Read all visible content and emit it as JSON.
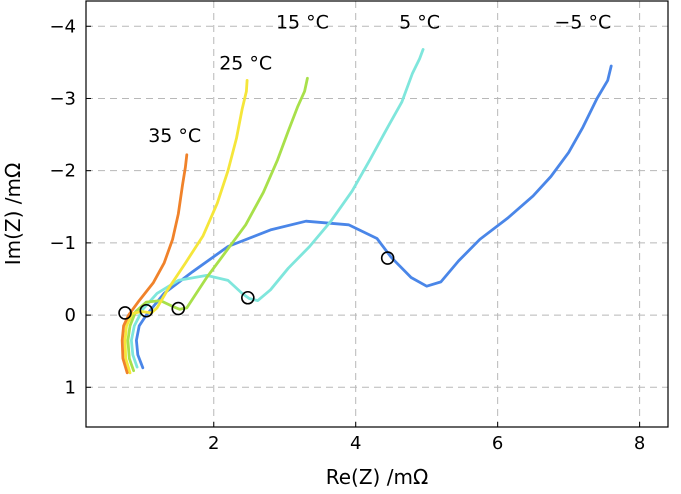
{
  "chart_data": {
    "type": "line",
    "xlabel": "Re(Z) /mΩ",
    "ylabel": "Im(Z) /mΩ",
    "xlim": [
      0.2,
      8.4
    ],
    "ylim": [
      1.55,
      -4.35
    ],
    "y_inverted": true,
    "x_ticks": [
      2,
      4,
      6,
      8
    ],
    "x_tick_labels": [
      "2",
      "4",
      "6",
      "8"
    ],
    "y_ticks": [
      -4,
      -3,
      -2,
      -1,
      0,
      1
    ],
    "y_tick_labels": [
      "−4",
      "−3",
      "−2",
      "−1",
      "0",
      "1"
    ],
    "grid": true,
    "series": [
      {
        "name": "−5 °C",
        "color": "#4a86e8",
        "marker": [
          4.45,
          -0.79
        ],
        "points": [
          [
            1.0,
            0.73
          ],
          [
            0.93,
            0.55
          ],
          [
            0.91,
            0.35
          ],
          [
            0.95,
            0.15
          ],
          [
            1.05,
            0.0
          ],
          [
            1.3,
            -0.3
          ],
          [
            1.7,
            -0.6
          ],
          [
            2.2,
            -0.95
          ],
          [
            2.8,
            -1.18
          ],
          [
            3.3,
            -1.3
          ],
          [
            3.9,
            -1.25
          ],
          [
            4.3,
            -1.06
          ],
          [
            4.5,
            -0.8
          ],
          [
            4.78,
            -0.52
          ],
          [
            5.0,
            -0.4
          ],
          [
            5.2,
            -0.46
          ],
          [
            5.45,
            -0.75
          ],
          [
            5.75,
            -1.05
          ],
          [
            6.15,
            -1.35
          ],
          [
            6.5,
            -1.65
          ],
          [
            6.75,
            -1.92
          ],
          [
            7.0,
            -2.25
          ],
          [
            7.2,
            -2.6
          ],
          [
            7.4,
            -3.0
          ],
          [
            7.55,
            -3.25
          ],
          [
            7.6,
            -3.45
          ]
        ]
      },
      {
        "name": "5 °C",
        "color": "#7fe6dc",
        "marker": [
          2.48,
          -0.24
        ],
        "points": [
          [
            0.92,
            0.72
          ],
          [
            0.86,
            0.55
          ],
          [
            0.84,
            0.35
          ],
          [
            0.88,
            0.15
          ],
          [
            1.0,
            -0.08
          ],
          [
            1.2,
            -0.3
          ],
          [
            1.5,
            -0.48
          ],
          [
            1.9,
            -0.55
          ],
          [
            2.2,
            -0.48
          ],
          [
            2.4,
            -0.3
          ],
          [
            2.5,
            -0.23
          ],
          [
            2.62,
            -0.2
          ],
          [
            2.8,
            -0.35
          ],
          [
            3.05,
            -0.65
          ],
          [
            3.35,
            -0.95
          ],
          [
            3.65,
            -1.3
          ],
          [
            3.95,
            -1.72
          ],
          [
            4.2,
            -2.15
          ],
          [
            4.45,
            -2.6
          ],
          [
            4.65,
            -2.95
          ],
          [
            4.8,
            -3.35
          ],
          [
            4.9,
            -3.55
          ],
          [
            4.95,
            -3.68
          ]
        ]
      },
      {
        "name": "15 °C",
        "color": "#a8e04a",
        "marker": [
          1.5,
          -0.09
        ],
        "points": [
          [
            0.87,
            0.77
          ],
          [
            0.81,
            0.6
          ],
          [
            0.79,
            0.35
          ],
          [
            0.82,
            0.15
          ],
          [
            0.9,
            -0.05
          ],
          [
            1.05,
            -0.18
          ],
          [
            1.25,
            -0.2
          ],
          [
            1.42,
            -0.12
          ],
          [
            1.52,
            -0.08
          ],
          [
            1.62,
            -0.1
          ],
          [
            1.72,
            -0.25
          ],
          [
            1.9,
            -0.52
          ],
          [
            2.15,
            -0.85
          ],
          [
            2.45,
            -1.25
          ],
          [
            2.7,
            -1.7
          ],
          [
            2.9,
            -2.15
          ],
          [
            3.05,
            -2.55
          ],
          [
            3.18,
            -2.88
          ],
          [
            3.28,
            -3.1
          ],
          [
            3.32,
            -3.28
          ]
        ]
      },
      {
        "name": "25 °C",
        "color": "#f5e63a",
        "marker": [
          1.05,
          -0.06
        ],
        "points": [
          [
            0.82,
            0.8
          ],
          [
            0.76,
            0.6
          ],
          [
            0.75,
            0.35
          ],
          [
            0.77,
            0.15
          ],
          [
            0.85,
            -0.02
          ],
          [
            0.98,
            -0.05
          ],
          [
            1.12,
            -0.03
          ],
          [
            1.2,
            -0.1
          ],
          [
            1.35,
            -0.35
          ],
          [
            1.6,
            -0.72
          ],
          [
            1.85,
            -1.1
          ],
          [
            2.05,
            -1.55
          ],
          [
            2.2,
            -2.0
          ],
          [
            2.32,
            -2.45
          ],
          [
            2.4,
            -2.85
          ],
          [
            2.46,
            -3.1
          ],
          [
            2.47,
            -3.25
          ]
        ]
      },
      {
        "name": "35 °C",
        "color": "#f0822a",
        "marker": [
          0.75,
          -0.03
        ],
        "points": [
          [
            0.78,
            0.8
          ],
          [
            0.72,
            0.6
          ],
          [
            0.71,
            0.35
          ],
          [
            0.73,
            0.15
          ],
          [
            0.8,
            0.0
          ],
          [
            0.95,
            -0.2
          ],
          [
            1.15,
            -0.45
          ],
          [
            1.3,
            -0.72
          ],
          [
            1.42,
            -1.05
          ],
          [
            1.5,
            -1.4
          ],
          [
            1.56,
            -1.8
          ],
          [
            1.6,
            -2.05
          ],
          [
            1.62,
            -2.22
          ]
        ]
      }
    ],
    "annotations": [
      {
        "text": "−5 °C",
        "x": 7.2,
        "y": -3.97
      },
      {
        "text": "5 °C",
        "x": 4.9,
        "y": -3.97
      },
      {
        "text": "15 °C",
        "x": 3.25,
        "y": -3.97
      },
      {
        "text": "25 °C",
        "x": 2.45,
        "y": -3.4
      },
      {
        "text": "35 °C",
        "x": 1.45,
        "y": -2.4
      }
    ]
  }
}
